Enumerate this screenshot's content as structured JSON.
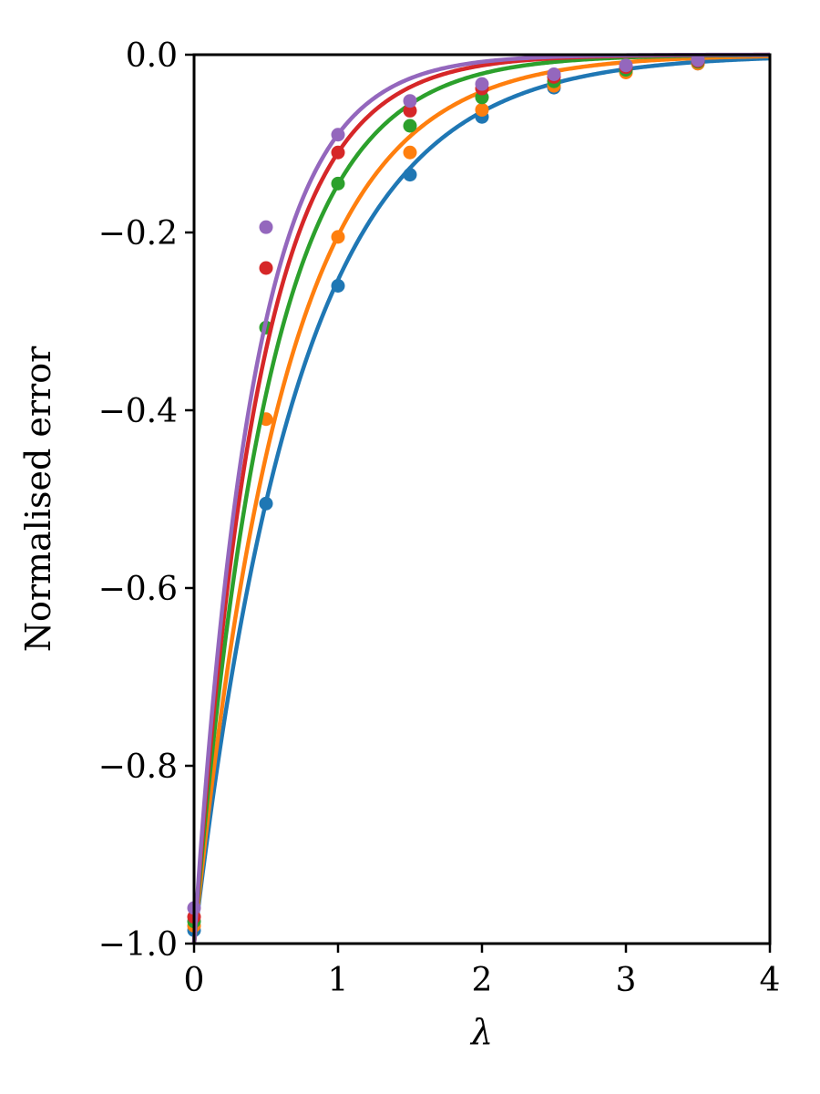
{
  "chart_data": {
    "type": "line",
    "title": "",
    "xlabel": "λ",
    "ylabel": "Normalised error",
    "xlim": [
      0,
      4
    ],
    "ylim": [
      -1.0,
      0.0
    ],
    "x_ticks": [
      0,
      1,
      2,
      3,
      4
    ],
    "x_tick_labels": [
      "0",
      "1",
      "2",
      "3",
      "4"
    ],
    "y_ticks": [
      0.0,
      -0.2,
      -0.4,
      -0.6,
      -0.8,
      -1.0
    ],
    "y_tick_labels": [
      "0.0",
      "−0.2",
      "−0.4",
      "−0.6",
      "−0.8",
      "−1.0"
    ],
    "grid": false,
    "legend": "none",
    "marker_x": [
      0,
      0.5,
      1.0,
      1.5,
      2.0,
      2.5,
      3.0,
      3.5
    ],
    "series": [
      {
        "color": "#1f77b4",
        "k": 1.373,
        "markers": [
          -0.985,
          -0.505,
          -0.26,
          -0.135,
          -0.07,
          -0.037,
          -0.019,
          -0.01
        ]
      },
      {
        "color": "#ff7f0e",
        "k": 1.591,
        "markers": [
          -0.98,
          -0.41,
          -0.205,
          -0.11,
          -0.062,
          -0.035,
          -0.02,
          -0.01
        ]
      },
      {
        "color": "#2ca02c",
        "k": 1.924,
        "markers": [
          -0.975,
          -0.307,
          -0.145,
          -0.08,
          -0.048,
          -0.03,
          -0.017,
          -0.008
        ]
      },
      {
        "color": "#d62728",
        "k": 2.206,
        "markers": [
          -0.97,
          -0.24,
          -0.11,
          -0.063,
          -0.038,
          -0.025,
          -0.014,
          -0.007
        ]
      },
      {
        "color": "#9467bd",
        "k": 2.413,
        "markers": [
          -0.96,
          -0.194,
          -0.09,
          -0.052,
          -0.033,
          -0.022,
          -0.012,
          -0.006
        ]
      }
    ]
  }
}
